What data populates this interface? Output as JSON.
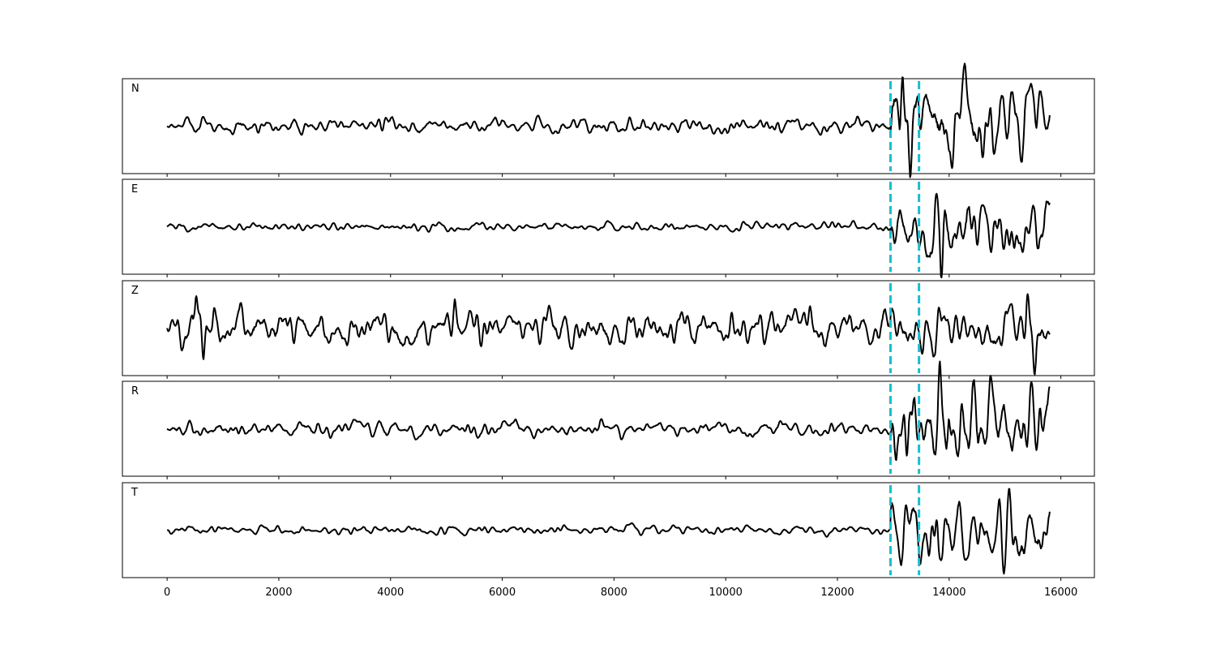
{
  "chart_data": {
    "type": "line",
    "title": "",
    "xlabel": "",
    "ylabel": "",
    "xlim": [
      -800,
      16600
    ],
    "xticks": [
      0,
      2000,
      4000,
      6000,
      8000,
      10000,
      12000,
      14000,
      16000
    ],
    "x_start": 0,
    "x_end": 15800,
    "grid": false,
    "legend": false,
    "colors": {
      "trace": "#000000",
      "marker": "#17becf"
    },
    "markers": [
      {
        "x": 12950
      },
      {
        "x": 13460
      }
    ],
    "panels": [
      {
        "label": "N",
        "ylim": [
          -1.15,
          1.15
        ],
        "noise": {
          "pre": 0.15,
          "post": 0.8,
          "low": 0
        },
        "bursts": [
          {
            "x": 13160,
            "y": 1.0
          },
          {
            "x": 13300,
            "y": -0.7
          },
          {
            "x": 13440,
            "y": 1.05
          },
          {
            "x": 13950,
            "y": 0.9
          },
          {
            "x": 14060,
            "y": -1.0
          },
          {
            "x": 15520,
            "y": 0.6
          },
          {
            "x": 15780,
            "y": -0.5
          }
        ]
      },
      {
        "label": "E",
        "ylim": [
          -1.15,
          1.15
        ],
        "noise": {
          "pre": 0.08,
          "post": 0.55,
          "low": 0
        },
        "bursts": [
          {
            "x": 13760,
            "y": 0.8
          },
          {
            "x": 13860,
            "y": -1.1
          },
          {
            "x": 15200,
            "y": 0.45
          }
        ]
      },
      {
        "label": "Z",
        "ylim": [
          -1.15,
          1.15
        ],
        "noise": {
          "pre": 0.35,
          "post": 0.45,
          "low": 0
        },
        "bursts": [
          {
            "x": 520,
            "y": 1.05
          },
          {
            "x": 650,
            "y": -0.85
          },
          {
            "x": 840,
            "y": 0.7
          },
          {
            "x": 5150,
            "y": 0.6
          },
          {
            "x": 9450,
            "y": -0.55
          },
          {
            "x": 15400,
            "y": 0.9
          },
          {
            "x": 15530,
            "y": -0.75
          }
        ]
      },
      {
        "label": "R",
        "ylim": [
          -1.15,
          1.15
        ],
        "noise": {
          "pre": 0.14,
          "post": 0.75,
          "low": 0
        },
        "bursts": [
          {
            "x": 13250,
            "y": -0.9
          },
          {
            "x": 13380,
            "y": 0.65
          },
          {
            "x": 13830,
            "y": 1.0
          },
          {
            "x": 13950,
            "y": -0.75
          },
          {
            "x": 14000,
            "y": 0.8
          },
          {
            "x": 15800,
            "y": 0.35
          }
        ]
      },
      {
        "label": "T",
        "ylim": [
          -1.15,
          1.15
        ],
        "noise": {
          "pre": 0.08,
          "post": 0.55,
          "low": 0
        },
        "bursts": [
          {
            "x": 13780,
            "y": 0.75
          },
          {
            "x": 13880,
            "y": -1.2
          },
          {
            "x": 15100,
            "y": 0.55
          }
        ]
      }
    ]
  }
}
